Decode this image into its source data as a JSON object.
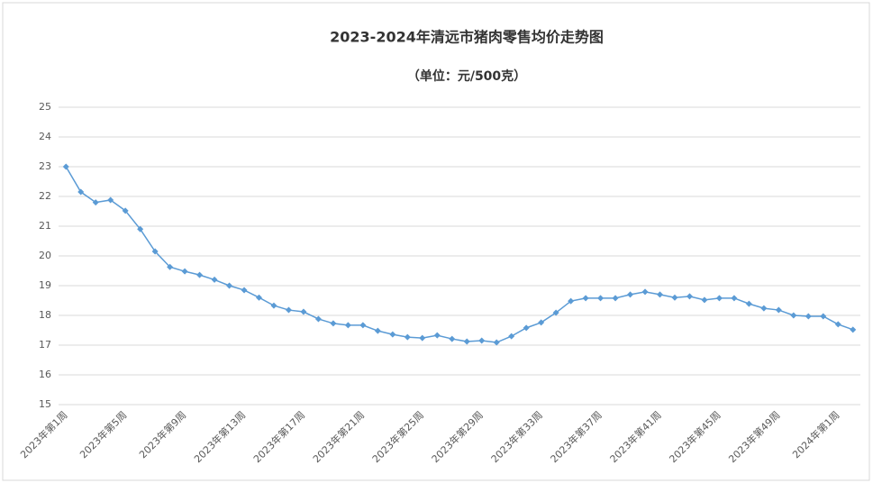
{
  "chart_data": {
    "type": "line",
    "title": "2023-2024年清远市猪肉零售均价走势图",
    "subtitle": "（单位：元/500克）",
    "categories": [
      "2023年第1周",
      null,
      null,
      null,
      "2023年第5周",
      null,
      null,
      null,
      "2023年第9周",
      null,
      null,
      null,
      "2023年第13周",
      null,
      null,
      null,
      "2023年第17周",
      null,
      null,
      null,
      "2023年第21周",
      null,
      null,
      null,
      "2023年第25周",
      null,
      null,
      null,
      "2023年第29周",
      null,
      null,
      null,
      "2023年第33周",
      null,
      null,
      null,
      "2023年第37周",
      null,
      null,
      null,
      "2023年第41周",
      null,
      null,
      null,
      "2023年第45周",
      null,
      null,
      null,
      "2023年第49周",
      null,
      null,
      null,
      "2024年第1周",
      null
    ],
    "series": [
      {
        "name": "猪肉零售均价",
        "color": "#5b9bd5",
        "values": [
          23.0,
          22.15,
          21.8,
          21.88,
          21.52,
          20.9,
          20.15,
          19.63,
          19.48,
          19.36,
          19.2,
          19.0,
          18.85,
          18.6,
          18.33,
          18.18,
          18.12,
          17.88,
          17.73,
          17.67,
          17.67,
          17.48,
          17.36,
          17.27,
          17.24,
          17.33,
          17.21,
          17.12,
          17.15,
          17.09,
          17.3,
          17.58,
          17.76,
          18.09,
          18.48,
          18.58,
          18.58,
          18.58,
          18.7,
          18.79,
          18.7,
          18.6,
          18.64,
          18.52,
          18.58,
          18.58,
          18.39,
          18.24,
          18.18,
          18.0,
          17.97,
          17.97,
          17.7,
          17.52
        ]
      }
    ],
    "ylim": [
      15,
      25
    ],
    "yticks": [
      15,
      16,
      17,
      18,
      19,
      20,
      21,
      22,
      23,
      24,
      25
    ],
    "grid": true
  }
}
